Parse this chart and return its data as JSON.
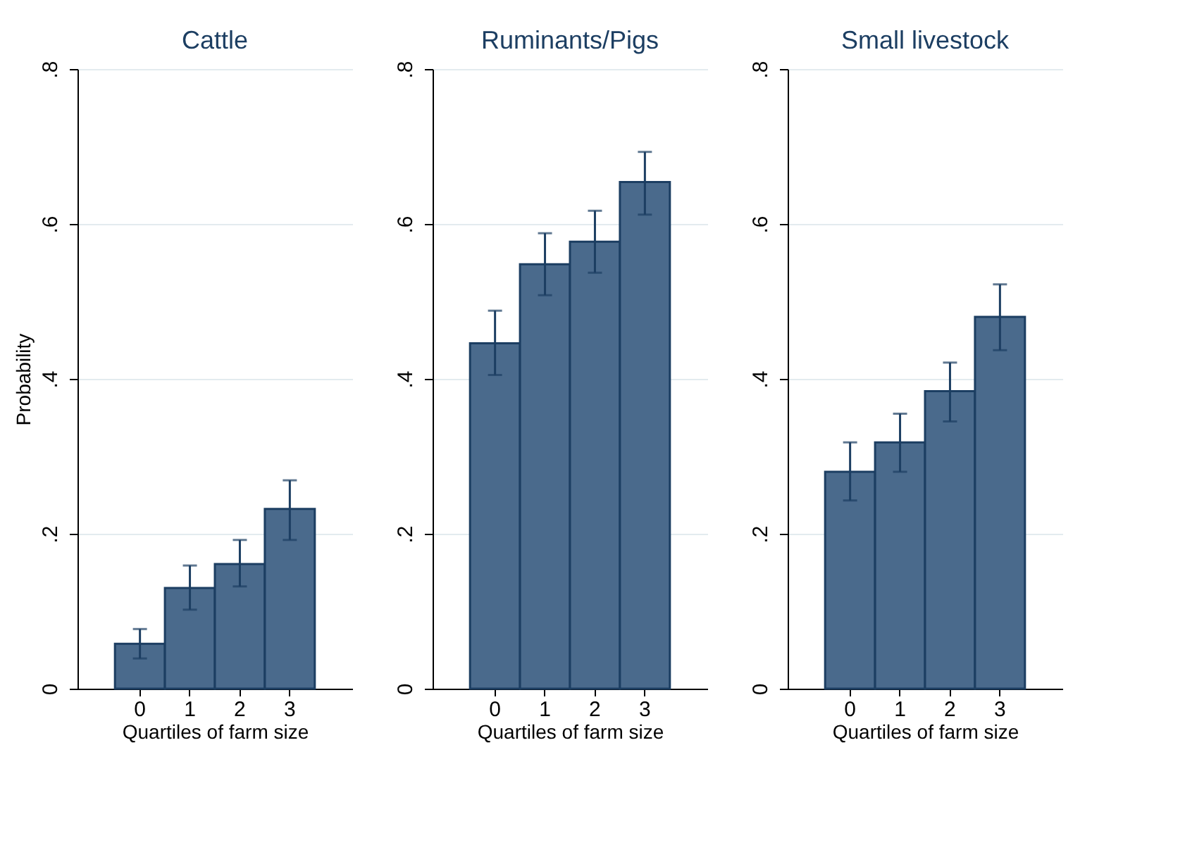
{
  "chart_data": [
    {
      "type": "bar",
      "title": "Cattle",
      "xlabel": "Quartiles of farm size",
      "ylabel": "Probability",
      "categories": [
        "0",
        "1",
        "2",
        "3"
      ],
      "values": [
        0.058,
        0.13,
        0.161,
        0.232
      ],
      "errors": [
        [
          0.039,
          0.077
        ],
        [
          0.102,
          0.159
        ],
        [
          0.132,
          0.192
        ],
        [
          0.192,
          0.269
        ]
      ],
      "color": "#4a6a8c",
      "ylim": [
        0,
        0.8
      ],
      "yticks": [
        0,
        {
          "value": 0.2,
          "label": ".2"
        },
        {
          "value": 0.4,
          "label": ".4"
        },
        {
          "value": 0.6,
          "label": ".6"
        },
        {
          "value": 0.8,
          "label": ".8"
        }
      ],
      "grid": "y"
    },
    {
      "type": "bar",
      "title": "Ruminants/Pigs",
      "xlabel": "Quartiles of farm size",
      "categories": [
        "0",
        "1",
        "2",
        "3"
      ],
      "values": [
        0.446,
        0.548,
        0.577,
        0.654
      ],
      "errors": [
        [
          0.405,
          0.488
        ],
        [
          0.508,
          0.588
        ],
        [
          0.537,
          0.617
        ],
        [
          0.612,
          0.693
        ]
      ],
      "color": "#4a6a8c",
      "ylim": [
        0,
        0.8
      ],
      "yticks": [
        0,
        {
          "value": 0.2,
          "label": ".2"
        },
        {
          "value": 0.4,
          "label": ".4"
        },
        {
          "value": 0.6,
          "label": ".6"
        },
        {
          "value": 0.8,
          "label": ".8"
        }
      ],
      "grid": "y"
    },
    {
      "type": "bar",
      "title": "Small livestock",
      "xlabel": "Quartiles of farm size",
      "categories": [
        "0",
        "1",
        "2",
        "3"
      ],
      "values": [
        0.28,
        0.318,
        0.384,
        0.48
      ],
      "errors": [
        [
          0.243,
          0.318
        ],
        [
          0.28,
          0.355
        ],
        [
          0.345,
          0.421
        ],
        [
          0.437,
          0.522
        ]
      ],
      "color": "#4a6a8c",
      "ylim": [
        0,
        0.8
      ],
      "yticks": [
        0,
        {
          "value": 0.2,
          "label": ".2"
        },
        {
          "value": 0.4,
          "label": ".4"
        },
        {
          "value": 0.6,
          "label": ".6"
        },
        {
          "value": 0.8,
          "label": ".8"
        }
      ],
      "grid": "y"
    }
  ]
}
